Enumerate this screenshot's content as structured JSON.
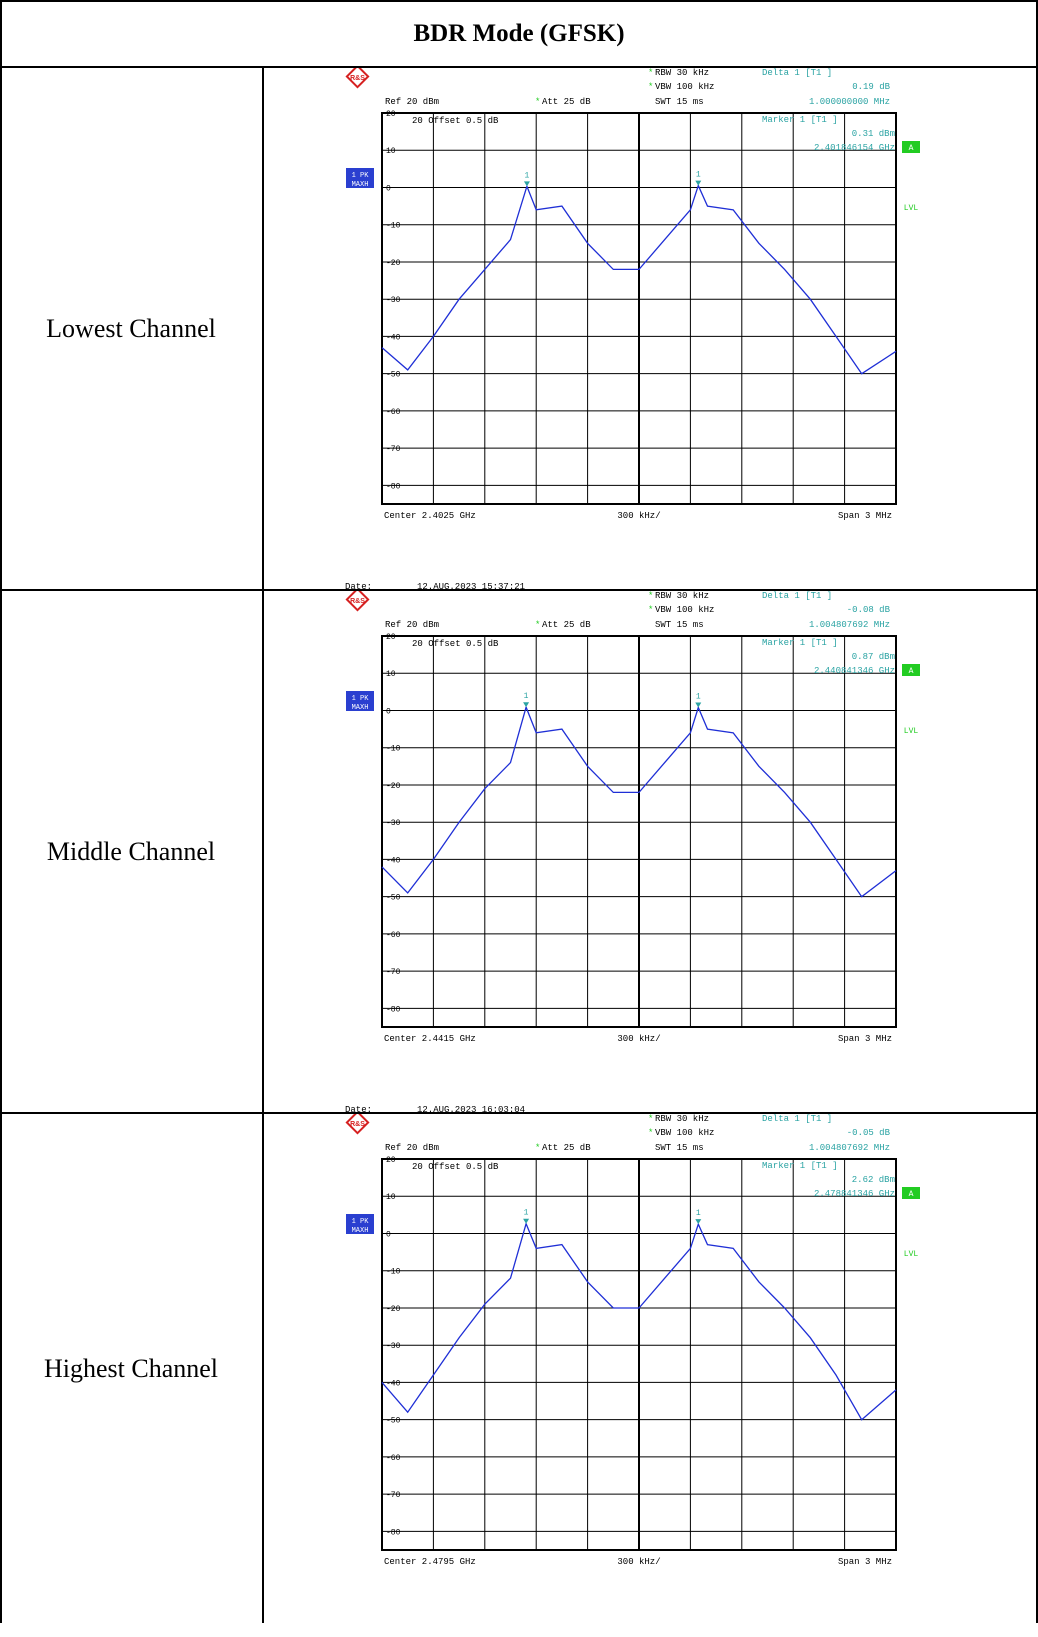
{
  "title": "BDR Mode (GFSK)",
  "rows": [
    {
      "label": "Lowest Channel",
      "ref": "Ref  20 dBm",
      "att": "Att  25 dB",
      "rbw": "RBW 30 kHz",
      "vbw": "VBW 100 kHz",
      "swt": "SWT 15 ms",
      "delta_title": "Delta 1 [T1 ]",
      "delta_db": "0.19 dB",
      "delta_freq": "1.000000000 MHz",
      "marker_title": "Marker 1 [T1 ]",
      "marker_dbm": "0.31 dBm",
      "marker_freq": "2.401846154 GHz",
      "offset": "20  Offset  0.5 dB",
      "center": "Center  2.4025 GHz",
      "div": "300 kHz/",
      "span": "Span  3 MHz",
      "date_label": "Date:",
      "date": "12.AUG.2023  15:37:21"
    },
    {
      "label": "Middle Channel",
      "ref": "Ref  20 dBm",
      "att": "Att  25 dB",
      "rbw": "RBW 30 kHz",
      "vbw": "VBW 100 kHz",
      "swt": "SWT 15 ms",
      "delta_title": "Delta 1 [T1 ]",
      "delta_db": "-0.08 dB",
      "delta_freq": "1.004807692 MHz",
      "marker_title": "Marker 1 [T1 ]",
      "marker_dbm": "0.87 dBm",
      "marker_freq": "2.440841346 GHz",
      "offset": "20  Offset  0.5 dB",
      "center": "Center  2.4415 GHz",
      "div": "300 kHz/",
      "span": "Span  3 MHz",
      "date_label": "Date:",
      "date": "12.AUG.2023  16:03:04"
    },
    {
      "label": "Highest Channel",
      "ref": "Ref  20 dBm",
      "att": "Att  25 dB",
      "rbw": "RBW 30 kHz",
      "vbw": "VBW 100 kHz",
      "swt": "SWT 15 ms",
      "delta_title": "Delta 1 [T1 ]",
      "delta_db": "-0.05 dB",
      "delta_freq": "1.004807692 MHz",
      "marker_title": "Marker 1 [T1 ]",
      "marker_dbm": "2.62 dBm",
      "marker_freq": "2.478841346 GHz",
      "offset": "20  Offset  0.5 dB",
      "center": "Center  2.4795 GHz",
      "div": "300 kHz/",
      "span": "Span  3 MHz",
      "date_label": "",
      "date": ""
    }
  ],
  "plot_labels": {
    "trace": "1 PK",
    "mode": "MAXH",
    "a_box": "A",
    "lvl": "LVL",
    "marker_num": "1",
    "rs_logo_text": "R&S"
  },
  "colors": {
    "trace": "#1f2fd6",
    "annotation": "#2aa3a3",
    "green_badge": "#22cc22",
    "trace_badge": "#2a3fd0",
    "grid": "#000000",
    "logo": "#d62020"
  },
  "chart_data": [
    {
      "type": "line",
      "title": "",
      "xlabel": "",
      "ylabel": "",
      "x_range_mhz": [
        2401.0,
        2404.0
      ],
      "ylim": [
        -85,
        20
      ],
      "ytick_labels": [
        "20",
        "10",
        "0",
        "-10",
        "-20",
        "-30",
        "-40",
        "-50",
        "-60",
        "-70",
        "-80"
      ],
      "series": [
        {
          "x_mhz": [
            2401.0,
            2401.15,
            2401.3,
            2401.45,
            2401.6,
            2401.75,
            2401.846,
            2401.9,
            2402.05,
            2402.2,
            2402.35,
            2402.5,
            2402.65,
            2402.8,
            2402.846,
            2402.9,
            2403.05,
            2403.2,
            2403.35,
            2403.5,
            2403.65,
            2403.8,
            2404.0
          ],
          "y_dbm": [
            -43,
            -49,
            -40,
            -30,
            -22,
            -14,
            0.31,
            -6,
            -5,
            -15,
            -22,
            -22,
            -14,
            -6,
            0.5,
            -5,
            -6,
            -15,
            -22,
            -30,
            -40,
            -50,
            -44
          ]
        }
      ]
    },
    {
      "type": "line",
      "title": "",
      "xlabel": "",
      "ylabel": "",
      "x_range_mhz": [
        2440.0,
        2443.0
      ],
      "ylim": [
        -85,
        20
      ],
      "ytick_labels": [
        "20",
        "10",
        "0",
        "-10",
        "-20",
        "-30",
        "-40",
        "-50",
        "-60",
        "-70",
        "-80"
      ],
      "series": [
        {
          "x_mhz": [
            2440.0,
            2440.15,
            2440.3,
            2440.45,
            2440.6,
            2440.75,
            2440.841,
            2440.9,
            2441.05,
            2441.2,
            2441.35,
            2441.5,
            2441.65,
            2441.8,
            2441.846,
            2441.9,
            2442.05,
            2442.2,
            2442.35,
            2442.5,
            2442.65,
            2442.8,
            2443.0
          ],
          "y_dbm": [
            -42,
            -49,
            -40,
            -30,
            -21,
            -14,
            0.87,
            -6,
            -5,
            -15,
            -22,
            -22,
            -14,
            -6,
            0.8,
            -5,
            -6,
            -15,
            -22,
            -30,
            -40,
            -50,
            -43
          ]
        }
      ]
    },
    {
      "type": "line",
      "title": "",
      "xlabel": "",
      "ylabel": "",
      "x_range_mhz": [
        2478.0,
        2481.0
      ],
      "ylim": [
        -85,
        20
      ],
      "ytick_labels": [
        "20",
        "10",
        "0",
        "-10",
        "-20",
        "-30",
        "-40",
        "-50",
        "-60",
        "-70",
        "-80"
      ],
      "series": [
        {
          "x_mhz": [
            2478.0,
            2478.15,
            2478.3,
            2478.45,
            2478.6,
            2478.75,
            2478.841,
            2478.9,
            2479.05,
            2479.2,
            2479.35,
            2479.5,
            2479.65,
            2479.8,
            2479.846,
            2479.9,
            2480.05,
            2480.2,
            2480.35,
            2480.5,
            2480.65,
            2480.8,
            2481.0
          ],
          "y_dbm": [
            -40,
            -48,
            -38,
            -28,
            -19,
            -12,
            2.62,
            -4,
            -3,
            -13,
            -20,
            -20,
            -12,
            -4,
            2.5,
            -3,
            -4,
            -13,
            -20,
            -28,
            -38,
            -50,
            -42
          ]
        }
      ]
    }
  ]
}
